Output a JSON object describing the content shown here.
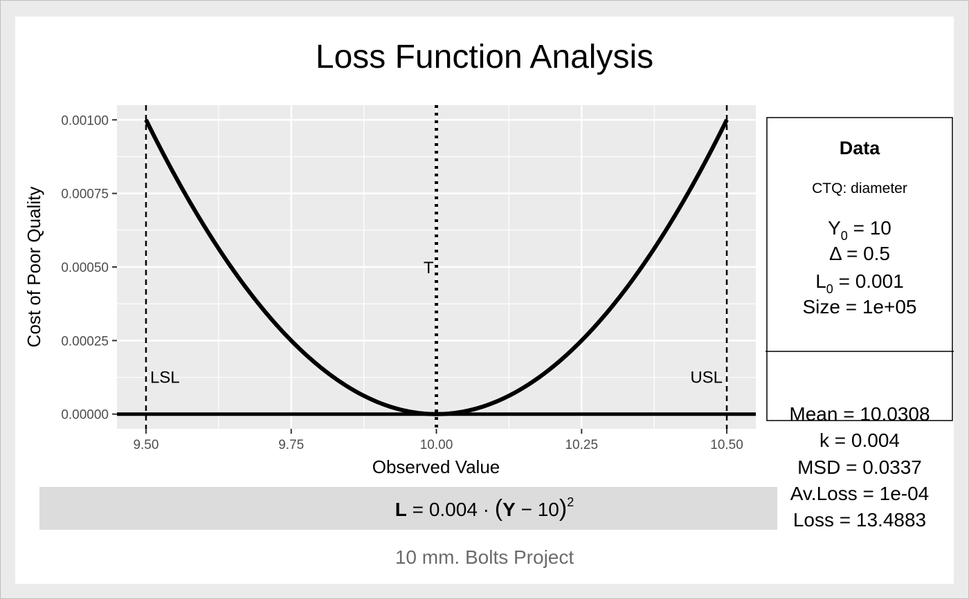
{
  "title": "Loss Function Analysis",
  "caption": "10 mm. Bolts Project",
  "chart_data": {
    "type": "line",
    "xlabel": "Observed Value",
    "ylabel": "Cost of Poor Quality",
    "xlim": [
      9.45,
      10.55
    ],
    "ylim": [
      -5e-05,
      0.00105
    ],
    "x_ticks": [
      9.5,
      9.75,
      10.0,
      10.25,
      10.5
    ],
    "x_tick_labels": [
      "9.50",
      "9.75",
      "10.00",
      "10.25",
      "10.50"
    ],
    "y_ticks": [
      0,
      0.00025,
      0.0005,
      0.00075,
      0.001
    ],
    "y_tick_labels": [
      "0.00000",
      "0.00025",
      "0.00050",
      "0.00075",
      "0.00100"
    ],
    "grid": true,
    "series": [
      {
        "function": "0.004 * (x - 10)^2",
        "x_range": [
          9.5,
          10.5
        ],
        "values_at_ticks": [
          0.001,
          0.00025,
          0,
          0.00025,
          0.001
        ]
      }
    ],
    "reference_lines": [
      {
        "x": 9.5,
        "label": "LSL",
        "style": "dashed"
      },
      {
        "x": 10.0,
        "label": "T",
        "style": "dotted"
      },
      {
        "x": 10.5,
        "label": "USL",
        "style": "dashed"
      }
    ],
    "hline": 0
  },
  "formula": {
    "bold_L": "L",
    "eq": " = 0.004 · ",
    "bold_Y": "Y",
    "minus": " − 10",
    "exp": "2"
  },
  "info_box": {
    "heading": "Data",
    "ctq": "CTQ: diameter",
    "y0": {
      "sym": "Y",
      "sub": "0",
      "rest": " = 10"
    },
    "delta": "Δ = 0.5",
    "l0": {
      "sym": "L",
      "sub": "0",
      "rest": " = 0.001"
    },
    "size": "Size = 1e+05",
    "mean": "Mean = 10.0308",
    "k": "k = 0.004",
    "msd": "MSD = 0.0337",
    "avloss": "Av.Loss = 1e-04",
    "loss": "Loss = 13.4883"
  },
  "colors": {
    "panel": "#ebebeb",
    "grid": "#ffffff",
    "curve": "#000000",
    "formula_band": "#dcdcdc",
    "caption": "#6b6b6b"
  }
}
